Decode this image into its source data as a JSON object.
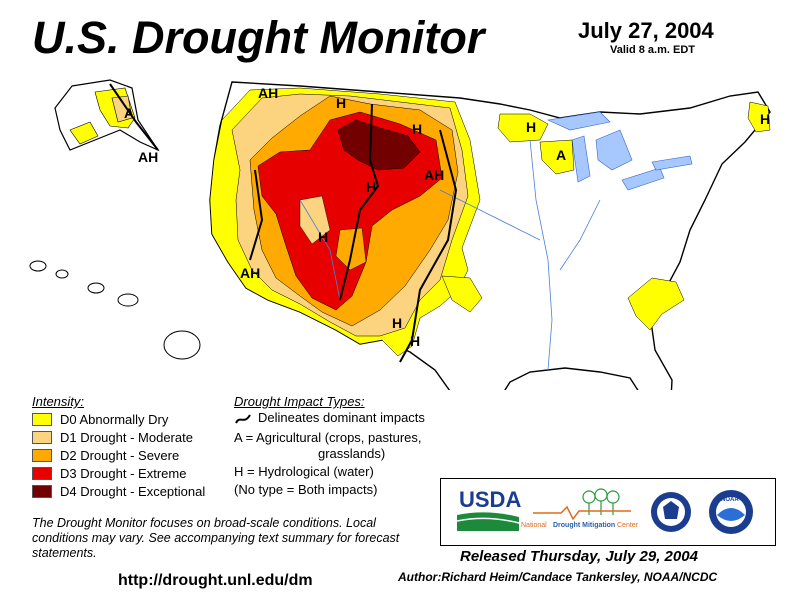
{
  "header": {
    "title": "U.S. Drought Monitor",
    "date": "July 27, 2004",
    "valid": "Valid 8 a.m. EDT"
  },
  "legend": {
    "heading": "Intensity:",
    "items": [
      {
        "label": "D0 Abnormally Dry",
        "color": "#ffff00"
      },
      {
        "label": "D1 Drought - Moderate",
        "color": "#fcd37f"
      },
      {
        "label": "D2 Drought - Severe",
        "color": "#ffaa00"
      },
      {
        "label": "D3 Drought - Extreme",
        "color": "#e60000"
      },
      {
        "label": "D4 Drought - Exceptional",
        "color": "#730000"
      }
    ]
  },
  "impacts": {
    "heading": "Drought Impact Types:",
    "lines": [
      "Delineates dominant impacts",
      "A = Agricultural (crops, pastures,",
      "grasslands)",
      "H = Hydrological (water)",
      "(No type = Both impacts)"
    ]
  },
  "map_labels": {
    "ah": "AH",
    "h": "H",
    "a": "A"
  },
  "note": "The Drought Monitor focuses on broad-scale conditions. Local conditions may vary.  See accompanying text summary for forecast statements.",
  "url": "http://drought.unl.edu/dm",
  "logos": {
    "usda": "USDA",
    "ndmc_prefix": "National",
    "ndmc_name": "Drought Mitigation",
    "ndmc_suffix": "Center",
    "noaa": "NOAA"
  },
  "released": "Released Thursday, July 29, 2004",
  "author": "Author:Richard Heim/Candace Tankersley, NOAA/NCDC"
}
